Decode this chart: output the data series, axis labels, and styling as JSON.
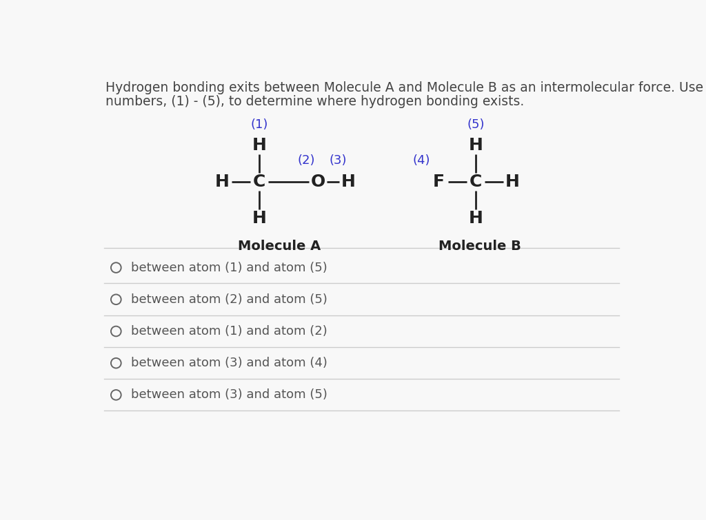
{
  "bg_color": "#f8f8f8",
  "title_text_line1": "Hydrogen bonding exits between Molecule A and Molecule B as an intermolecular force. Use the",
  "title_text_line2": "numbers, (1) - (5), to determine where hydrogen bonding exists.",
  "title_fontsize": 13.5,
  "title_color": "#444444",
  "blue_color": "#3333cc",
  "black_color": "#222222",
  "mol_font_size": 18,
  "num_label_fontsize": 13,
  "mol_label_fontsize": 14,
  "options": [
    "between atom (1) and atom (5)",
    "between atom (2) and atom (5)",
    "between atom (1) and atom (2)",
    "between atom (3) and atom (4)",
    "between atom (3) and atom (5)"
  ],
  "option_fontsize": 13,
  "option_color": "#555555",
  "line_color": "#cccccc",
  "circle_color": "#666666"
}
